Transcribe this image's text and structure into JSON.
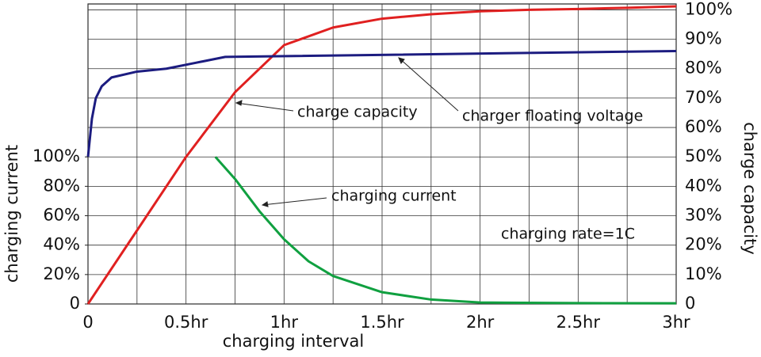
{
  "chart_data": {
    "type": "line",
    "xlabel": "charging interval",
    "ylabel": "charging current",
    "y2label": "charge capacity",
    "xlim": [
      0,
      3
    ],
    "xticks": [
      0,
      {
        "value": 0.5,
        "label": "0.5hr"
      },
      {
        "value": 1,
        "label": "1hr"
      },
      {
        "value": 1.5,
        "label": "1.5hr"
      },
      {
        "value": 2,
        "label": "2hr"
      },
      {
        "value": 2.5,
        "label": "2.5hr"
      },
      {
        "value": 3,
        "label": "3hr"
      }
    ],
    "x_grid": [
      0.25,
      0.75,
      1.25,
      1.75,
      2.25,
      2.75
    ],
    "ylim": [
      0,
      204
    ],
    "yticks": [
      0,
      {
        "value": 20,
        "label": "20%"
      },
      {
        "value": 40,
        "label": "40%"
      },
      {
        "value": 60,
        "label": "60%"
      },
      {
        "value": 80,
        "label": "80%"
      },
      {
        "value": 100,
        "label": "100%"
      }
    ],
    "y2lim": [
      0,
      102
    ],
    "y2ticks": [
      0,
      {
        "value": 10,
        "label": "10%"
      },
      {
        "value": 20,
        "label": "20%"
      },
      {
        "value": 30,
        "label": "30%"
      },
      {
        "value": 40,
        "label": "40%"
      },
      {
        "value": 50,
        "label": "50%"
      },
      {
        "value": 60,
        "label": "60%"
      },
      {
        "value": 70,
        "label": "70%"
      },
      {
        "value": 80,
        "label": "80%"
      },
      {
        "value": 90,
        "label": "90%"
      },
      {
        "value": 100,
        "label": "100%"
      }
    ],
    "grid": true,
    "series": [
      {
        "name": "charge capacity",
        "color": "#e02020",
        "axis": "y2",
        "x": [
          0,
          0.25,
          0.5,
          0.75,
          1,
          1.25,
          1.5,
          1.75,
          2,
          2.25,
          2.5,
          2.75,
          3
        ],
        "values": [
          0,
          25,
          50,
          72,
          88,
          94,
          97,
          98.5,
          99.5,
          100,
          100.3,
          100.7,
          101.2
        ]
      },
      {
        "name": "charger floating voltage",
        "color": "#1c1c80",
        "axis": "y2",
        "x": [
          0,
          0.02,
          0.04,
          0.07,
          0.12,
          0.25,
          0.4,
          0.55,
          0.7,
          3
        ],
        "values": [
          50,
          63,
          70,
          74,
          77,
          79,
          80,
          82,
          84,
          86
        ]
      },
      {
        "name": "charging current",
        "color": "#10a040",
        "x": [
          0.65,
          0.75,
          0.875,
          1,
          1.125,
          1.25,
          1.5,
          1.75,
          2,
          2.5,
          3
        ],
        "values": [
          100,
          85,
          63,
          44,
          29,
          19,
          8,
          3,
          1,
          0.6,
          0.5
        ]
      }
    ],
    "annotations": [
      "charge capacity",
      "charger floating voltage",
      "charging current",
      "charging rate=1C"
    ]
  }
}
